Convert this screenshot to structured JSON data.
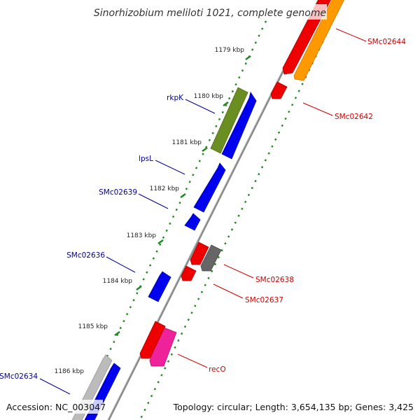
{
  "title": "Sinorhizobium meliloti 1021, complete genome",
  "footer": {
    "accession": "Accession: NC_003047",
    "summary": "Topology: circular; Length: 3,654,135 bp; Genes: 3,425"
  },
  "colors": {
    "backbone": "#888888",
    "tick": "#228822",
    "left_label": "#000099",
    "right_label": "#cc0000"
  },
  "ticks": [
    {
      "label": "1179 kbp"
    },
    {
      "label": "1180 kbp"
    },
    {
      "label": "1181 kbp"
    },
    {
      "label": "1182 kbp"
    },
    {
      "label": "1183 kbp"
    },
    {
      "label": "1184 kbp"
    },
    {
      "label": "1185 kbp"
    },
    {
      "label": "1186 kbp"
    }
  ],
  "features": [
    {
      "name": "rkpK",
      "strand": "forward",
      "track": "outer",
      "color": "#6b8e23"
    },
    {
      "name": "lpsL",
      "strand": "forward",
      "track": "inner",
      "color": "#0000ee"
    },
    {
      "name": "SMc02639",
      "strand": "forward",
      "track": "inner",
      "color": "#0000ee"
    },
    {
      "name": "SMc02636",
      "strand": "forward",
      "track": "inner",
      "color": "#0000ee"
    },
    {
      "name": "SMc02634",
      "strand": "forward",
      "track": "outer",
      "color": "#bbbbbb"
    },
    {
      "name": "SMc02644",
      "strand": "reverse",
      "track": "outer",
      "color": "#ff9900"
    },
    {
      "name": "SMc02642",
      "strand": "reverse",
      "track": "inner",
      "color": "#ee0000"
    },
    {
      "name": "SMc02638",
      "strand": "reverse",
      "track": "outer",
      "color": "#666666"
    },
    {
      "name": "SMc02637",
      "strand": "reverse",
      "track": "inner",
      "color": "#ee0000"
    },
    {
      "name": "recO",
      "strand": "reverse",
      "track": "outer",
      "color": "#ee2299"
    }
  ]
}
